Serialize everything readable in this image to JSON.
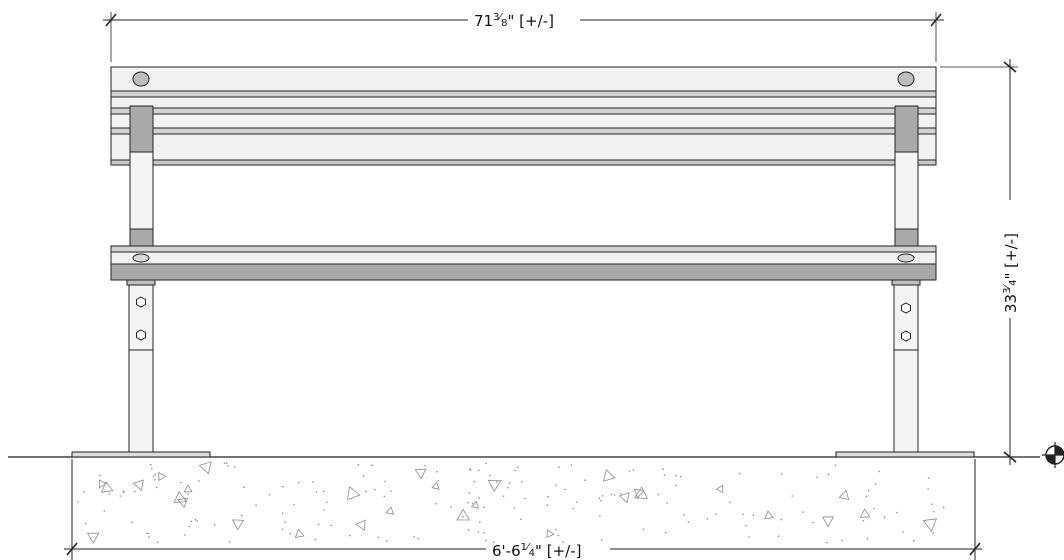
{
  "dimensions": {
    "width_top": {
      "whole": "71",
      "num": "3",
      "den": "8",
      "suffix": "\" [+/-]"
    },
    "height_right": {
      "whole": "33",
      "num": "3",
      "den": "4",
      "suffix": "\" [+/-]"
    },
    "width_bottom": {
      "whole": "6'-6",
      "num": "1",
      "den": "4",
      "suffix": "\" [+/-]"
    }
  },
  "colors": {
    "line": "#222222",
    "rail_light": "#f2f2f2",
    "rail_mid": "#d2d2d2",
    "rail_dark": "#a8a8a8",
    "post": "#f4f4f4",
    "sleeve": "#a9a9a9",
    "concrete_mark": "#8c8c8c"
  },
  "icons": {
    "ground_reference": "section-reference-icon"
  }
}
